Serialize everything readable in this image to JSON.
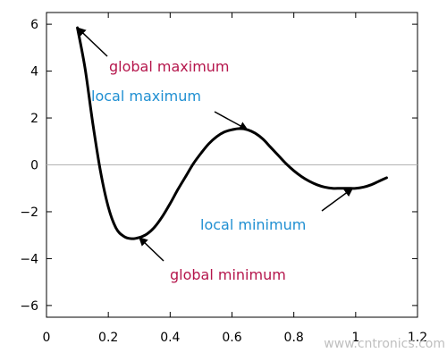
{
  "chart_data": {
    "type": "line",
    "title": "",
    "xlabel": "",
    "ylabel": "",
    "xlim": [
      0,
      1.2
    ],
    "ylim": [
      -6.5,
      6.5
    ],
    "x_ticks": [
      0,
      0.2,
      0.4,
      0.6,
      0.8,
      1,
      1.2
    ],
    "x_tick_labels": [
      "0",
      "0.2",
      "0.4",
      "0.6",
      "0.8",
      "1",
      "1.2"
    ],
    "y_ticks": [
      -6,
      -4,
      -2,
      0,
      2,
      4,
      6
    ],
    "y_tick_labels": [
      "−6",
      "−4",
      "−2",
      "0",
      "2",
      "4",
      "6"
    ],
    "grid": false,
    "zero_line": true,
    "series": [
      {
        "x": [
          0.1,
          0.125,
          0.15,
          0.175,
          0.2,
          0.225,
          0.25,
          0.275,
          0.3,
          0.325,
          0.35,
          0.375,
          0.4,
          0.425,
          0.45,
          0.475,
          0.5,
          0.525,
          0.55,
          0.575,
          0.6,
          0.625,
          0.65,
          0.675,
          0.7,
          0.725,
          0.75,
          0.775,
          0.8,
          0.825,
          0.85,
          0.875,
          0.9,
          0.925,
          0.95,
          0.975,
          1.0,
          1.025,
          1.05,
          1.075,
          1.1
        ],
        "y": [
          5.85,
          4.1,
          1.75,
          -0.3,
          -1.8,
          -2.7,
          -3.05,
          -3.15,
          -3.1,
          -2.95,
          -2.65,
          -2.2,
          -1.65,
          -1.05,
          -0.5,
          0.05,
          0.5,
          0.9,
          1.2,
          1.4,
          1.5,
          1.55,
          1.5,
          1.35,
          1.1,
          0.75,
          0.4,
          0.05,
          -0.25,
          -0.5,
          -0.7,
          -0.85,
          -0.95,
          -1.0,
          -1.0,
          -1.0,
          -1.0,
          -0.95,
          -0.85,
          -0.7,
          -0.55
        ],
        "color": "#000000"
      }
    ],
    "annotations": [
      {
        "text": "global maximum",
        "color": "#b5164c",
        "point": [
          0.1,
          5.85
        ]
      },
      {
        "text": "local maximum",
        "color": "#1f8fd2",
        "point": [
          0.65,
          1.5
        ]
      },
      {
        "text": "local minimum",
        "color": "#1f8fd2",
        "point": [
          0.99,
          -1.0
        ]
      },
      {
        "text": "global minimum",
        "color": "#b5164c",
        "point": [
          0.3,
          -3.1
        ]
      }
    ]
  },
  "watermark": "www.cntronics.com"
}
